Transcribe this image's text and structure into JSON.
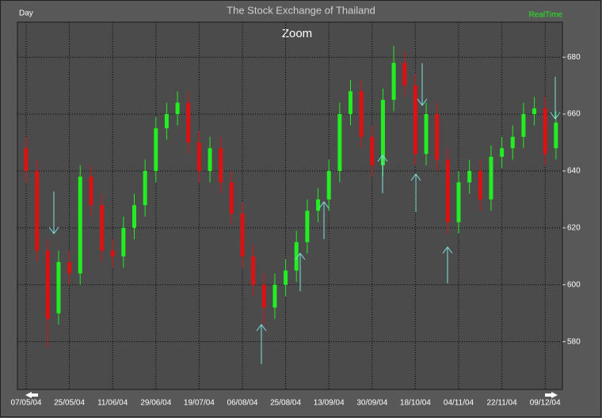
{
  "chart_data": {
    "type": "candlestick",
    "title": "The Stock Exchange of Thailand",
    "subtitle": "Zoom",
    "period_label": "Day",
    "mode_label": "RealTime",
    "categories": [
      "07/05/04",
      null,
      null,
      null,
      "25/05/04",
      null,
      null,
      null,
      "11/06/04",
      null,
      null,
      null,
      "29/06/04",
      null,
      null,
      null,
      "19/07/04",
      null,
      null,
      null,
      "06/08/04",
      null,
      null,
      null,
      "25/08/04",
      null,
      null,
      null,
      "13/09/04",
      null,
      null,
      null,
      "30/09/04",
      null,
      null,
      null,
      "18/10/04",
      null,
      null,
      null,
      "04/11/04",
      null,
      null,
      null,
      "22/11/04",
      null,
      null,
      null,
      "09/12/04",
      null
    ],
    "open": [
      648,
      640,
      612,
      590,
      608,
      604,
      638,
      628,
      612,
      610,
      620,
      628,
      640,
      655,
      660,
      664,
      650,
      640,
      648,
      636,
      625,
      610,
      600,
      592,
      600,
      605,
      615,
      626,
      630,
      640,
      660,
      668,
      652,
      642,
      665,
      678,
      670,
      646,
      660,
      644,
      622,
      636,
      640,
      630,
      645,
      648,
      652,
      660,
      662,
      648
    ],
    "high": [
      652,
      644,
      616,
      612,
      612,
      642,
      642,
      632,
      616,
      624,
      632,
      644,
      659,
      664,
      668,
      668,
      654,
      652,
      652,
      640,
      629,
      614,
      604,
      604,
      609,
      619,
      630,
      634,
      644,
      664,
      672,
      672,
      656,
      669,
      684,
      682,
      674,
      664,
      664,
      648,
      640,
      644,
      644,
      649,
      652,
      656,
      664,
      666,
      666,
      661
    ],
    "low": [
      636,
      608,
      578,
      586,
      600,
      600,
      624,
      608,
      606,
      606,
      616,
      624,
      636,
      651,
      656,
      646,
      636,
      636,
      632,
      621,
      606,
      596,
      586,
      588,
      596,
      601,
      611,
      622,
      626,
      636,
      656,
      648,
      638,
      638,
      661,
      666,
      642,
      642,
      640,
      618,
      618,
      632,
      626,
      626,
      641,
      644,
      648,
      656,
      642,
      644
    ],
    "close": [
      640,
      612,
      588,
      608,
      604,
      638,
      628,
      612,
      610,
      620,
      628,
      640,
      655,
      660,
      664,
      650,
      640,
      648,
      636,
      625,
      610,
      600,
      592,
      600,
      605,
      615,
      626,
      630,
      640,
      660,
      668,
      652,
      642,
      665,
      678,
      670,
      646,
      660,
      644,
      622,
      636,
      640,
      630,
      645,
      648,
      652,
      660,
      662,
      646,
      657
    ],
    "up_color": "#22ee22",
    "down_color": "#dd1111",
    "ylim": [
      563.2,
      692.3
    ],
    "yticks": [
      580,
      600,
      620,
      640,
      660,
      680
    ],
    "grid": true
  }
}
